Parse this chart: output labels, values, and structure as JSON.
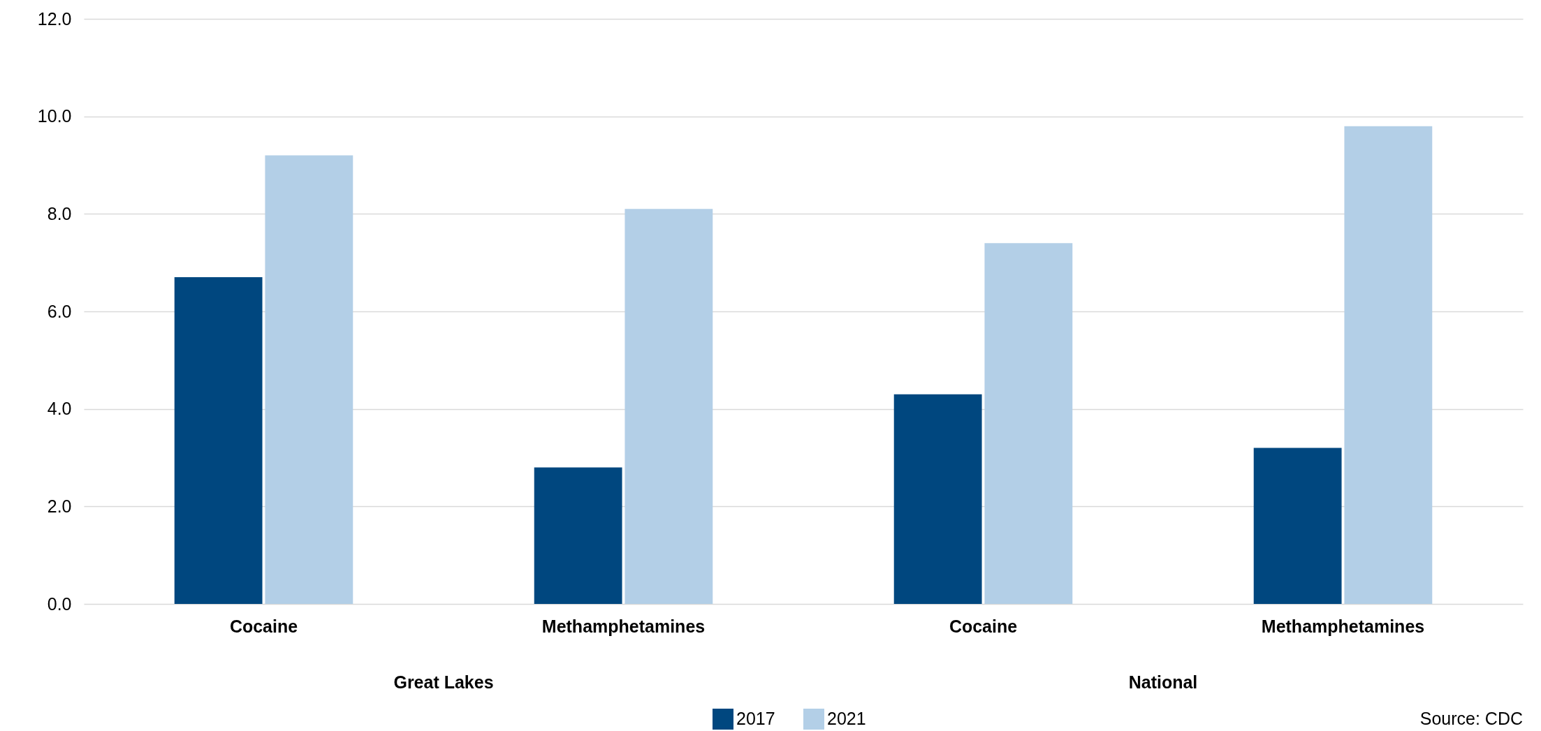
{
  "chart_data": {
    "type": "bar",
    "categories": [
      "Cocaine",
      "Methamphetamines",
      "Cocaine",
      "Methamphetamines"
    ],
    "series": [
      {
        "name": "2017",
        "color": "#00477f",
        "values": [
          6.7,
          2.8,
          4.3,
          3.2
        ]
      },
      {
        "name": "2021",
        "color": "#b3cfe7",
        "values": [
          9.2,
          8.1,
          7.4,
          9.8
        ]
      }
    ],
    "ylim": [
      0,
      12
    ],
    "yticks": [
      {
        "value": 0,
        "label": "0.0"
      },
      {
        "value": 2,
        "label": "2.0"
      },
      {
        "value": 4,
        "label": "4.0"
      },
      {
        "value": 6,
        "label": "6.0"
      },
      {
        "value": 8,
        "label": "8.0"
      },
      {
        "value": 10,
        "label": "10.0"
      },
      {
        "value": 12,
        "label": "12.0"
      }
    ],
    "grid": "y",
    "legend": "bottom",
    "annotations": [
      "Great Lakes",
      "National",
      "Source: CDC"
    ]
  }
}
